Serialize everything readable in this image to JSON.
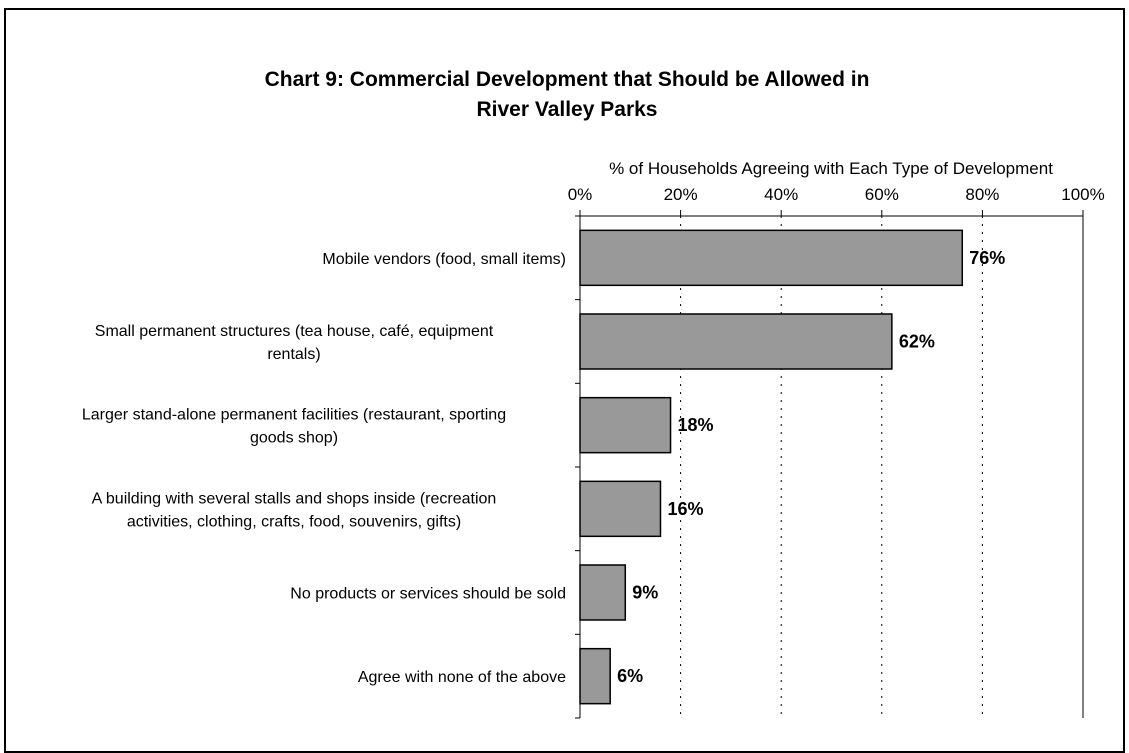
{
  "chart_data": {
    "type": "bar",
    "orientation": "horizontal",
    "title": "Chart 9: Commercial Development that Should be Allowed in River Valley Parks",
    "title_lines": [
      "Chart 9: Commercial Development that Should be Allowed in",
      "River Valley Parks"
    ],
    "xlabel": "% of Households Agreeing with Each Type of Development",
    "xlim": [
      0,
      100
    ],
    "x_ticks": [
      "0%",
      "20%",
      "40%",
      "60%",
      "80%",
      "100%"
    ],
    "categories": [
      [
        "Mobile vendors (food, small items)"
      ],
      [
        "Small permanent structures (tea house, café, equipment",
        "rentals)"
      ],
      [
        "Larger stand-alone permanent facilities (restaurant, sporting",
        "goods shop)"
      ],
      [
        "A building with several stalls and shops inside (recreation",
        "activities, clothing, crafts, food, souvenirs, gifts)"
      ],
      [
        "No products or services should be sold"
      ],
      [
        "Agree with none of the above"
      ]
    ],
    "values": [
      76,
      62,
      18,
      16,
      9,
      6
    ],
    "data_labels": [
      "76%",
      "62%",
      "18%",
      "16%",
      "9%",
      "6%"
    ],
    "bar_color": "#999999",
    "grid": "vertical dotted",
    "legend": "none"
  }
}
